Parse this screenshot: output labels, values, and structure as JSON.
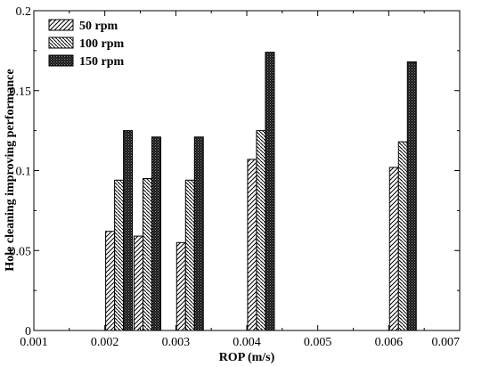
{
  "chart_data": {
    "type": "bar",
    "title": "",
    "xlabel": "ROP (m/s)",
    "ylabel": "Hole cleaning improving performance",
    "xlim": [
      0.001,
      0.007
    ],
    "ylim": [
      0,
      0.2
    ],
    "x_ticks": [
      "0.001",
      "0.002",
      "0.003",
      "0.004",
      "0.005",
      "0.006",
      "0.007"
    ],
    "y_ticks": [
      "0",
      "0.05",
      "0.1",
      "0.15",
      "0.2"
    ],
    "grid": false,
    "legend_position": "top-left",
    "x": [
      0.0022,
      0.0026,
      0.0032,
      0.0042,
      0.0062
    ],
    "series": [
      {
        "name": "50 rpm",
        "pattern": "diagonal-up",
        "color": "#000000",
        "values": [
          0.062,
          0.059,
          0.055,
          0.107,
          0.102
        ]
      },
      {
        "name": "100 rpm",
        "pattern": "diagonal-down",
        "color": "#000000",
        "values": [
          0.094,
          0.095,
          0.094,
          0.125,
          0.118
        ]
      },
      {
        "name": "150 rpm",
        "pattern": "dense-dots",
        "color": "#000000",
        "values": [
          0.125,
          0.121,
          0.121,
          0.174,
          0.168
        ]
      }
    ]
  }
}
